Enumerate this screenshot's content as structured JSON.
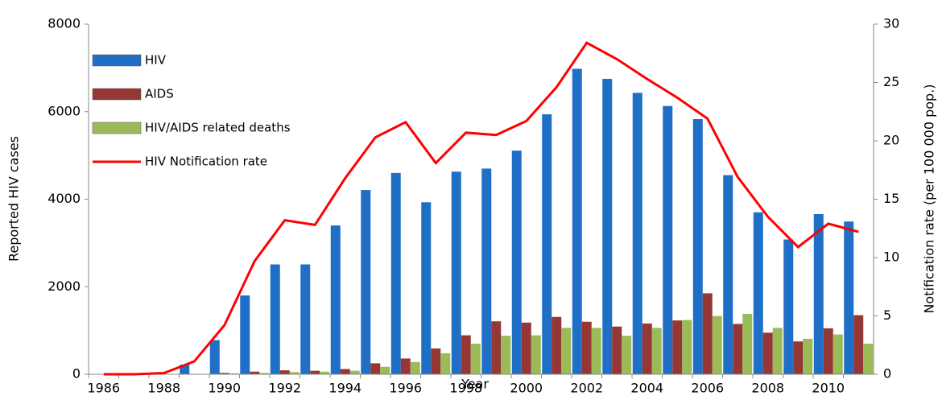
{
  "chart_data": {
    "type": "bar",
    "x_label": "Year",
    "y_label": "Reported HIV cases",
    "y2_label": "Notification rate (per 100 000 pop.)",
    "categories": [
      "1986",
      null,
      "1988",
      null,
      "1990",
      null,
      "1992",
      null,
      "1994",
      null,
      "1996",
      null,
      "1998",
      null,
      "2000",
      null,
      "2002",
      null,
      "2004",
      null,
      "2006",
      null,
      "2008",
      null,
      "2010",
      null
    ],
    "series": [
      {
        "name": "HIV",
        "color": "#1f6fc6",
        "values": [
          0,
          0,
          0,
          220,
          780,
          1800,
          2510,
          2510,
          3400,
          4210,
          4600,
          3930,
          4630,
          4700,
          5110,
          5940,
          6980,
          6750,
          6430,
          6130,
          5830,
          4550,
          3700,
          3080,
          3660,
          3490
        ]
      },
      {
        "name": "AIDS",
        "color": "#953735",
        "values": [
          0,
          0,
          0,
          10,
          30,
          60,
          90,
          80,
          120,
          250,
          360,
          590,
          890,
          1210,
          1180,
          1310,
          1200,
          1090,
          1160,
          1230,
          1850,
          1150,
          950,
          750,
          1050,
          1350
        ]
      },
      {
        "name": "HIV/AIDS related deaths",
        "color": "#9bbb59",
        "values": [
          0,
          0,
          0,
          0,
          20,
          30,
          50,
          60,
          80,
          170,
          280,
          480,
          700,
          880,
          890,
          1060,
          1060,
          880,
          1060,
          1240,
          1330,
          1380,
          1060,
          810,
          910,
          700
        ]
      },
      {
        "name": "HIV Notification rate",
        "color": "#ff0000",
        "type": "line",
        "axis": "y2",
        "values": [
          0,
          0,
          0.1,
          1.1,
          4.2,
          9.7,
          13.2,
          12.8,
          16.8,
          20.3,
          21.6,
          18.1,
          20.7,
          20.5,
          21.7,
          24.6,
          28.4,
          27.0,
          25.3,
          23.7,
          21.9,
          16.9,
          13.5,
          10.9,
          12.9,
          12.2
        ]
      }
    ],
    "ylim": [
      0,
      8000
    ],
    "yticks": [
      0,
      2000,
      4000,
      6000,
      8000
    ],
    "y2lim": [
      0,
      30
    ],
    "y2ticks": [
      0,
      5,
      10,
      15,
      20,
      25,
      30
    ],
    "legend": "upper left"
  }
}
